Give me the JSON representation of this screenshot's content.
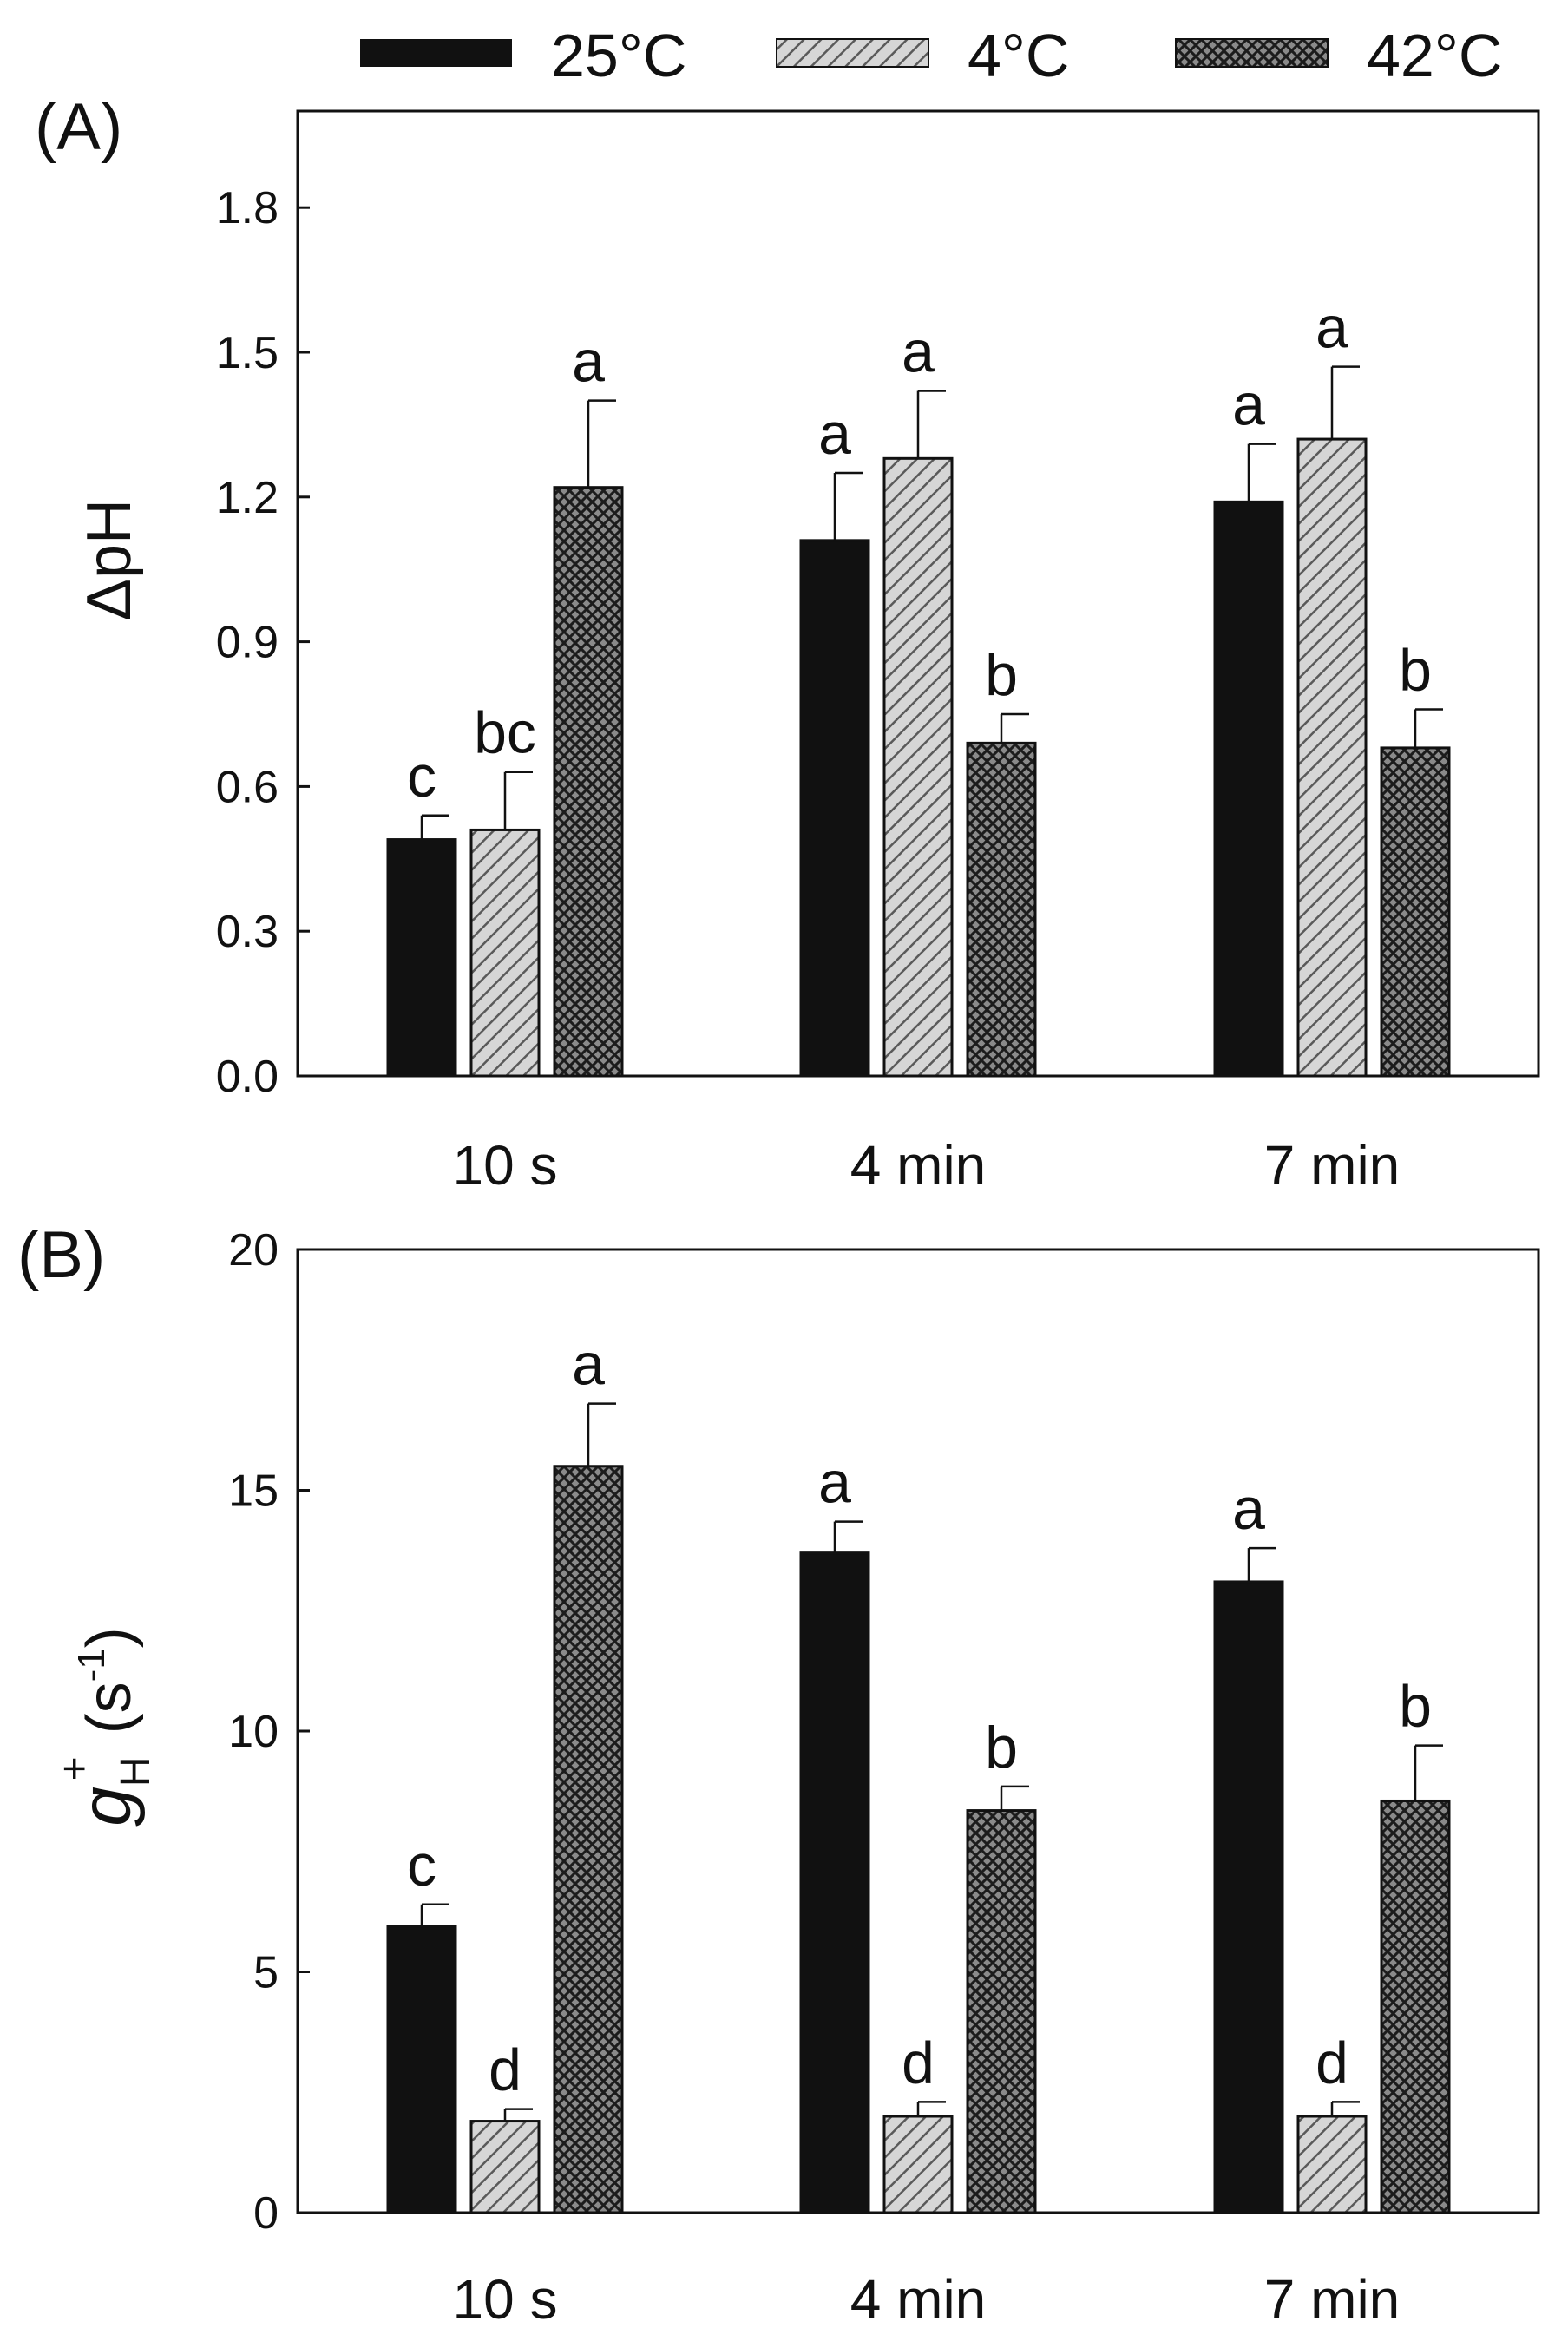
{
  "legend": {
    "entries": [
      {
        "key": "t25",
        "label": "25°C"
      },
      {
        "key": "t4",
        "label": "4°C"
      },
      {
        "key": "t42",
        "label": "42°C"
      }
    ]
  },
  "colors": {
    "t25": "#111111",
    "t4_fill": "#d6d6d6",
    "t4_hatch": "#5a5a5a",
    "t42_fill": "#8a8a8a",
    "t42_hatch": "#1c1c1c",
    "axis": "#111111"
  },
  "chart_data": [
    {
      "type": "bar",
      "panel_label": "(A)",
      "ylabel": "ΔpH",
      "categories": [
        "10 s",
        "4 min",
        "7 min"
      ],
      "ylim": [
        0,
        2.0
      ],
      "yticks": [
        "0.0",
        "0.3",
        "0.6",
        "0.9",
        "1.2",
        "1.5",
        "1.8"
      ],
      "ytick_values": [
        0,
        0.3,
        0.6,
        0.9,
        1.2,
        1.5,
        1.8
      ],
      "series": [
        {
          "key": "t25",
          "name": "25°C",
          "values": [
            0.49,
            1.11,
            1.19
          ],
          "errors": [
            0.05,
            0.14,
            0.12
          ],
          "letters": [
            "c",
            "a",
            "a"
          ]
        },
        {
          "key": "t4",
          "name": "4°C",
          "values": [
            0.51,
            1.28,
            1.32
          ],
          "errors": [
            0.12,
            0.14,
            0.15
          ],
          "letters": [
            "bc",
            "a",
            "a"
          ]
        },
        {
          "key": "t42",
          "name": "42°C",
          "values": [
            1.22,
            0.69,
            0.68
          ],
          "errors": [
            0.18,
            0.06,
            0.08
          ],
          "letters": [
            "a",
            "b",
            "b"
          ]
        }
      ]
    },
    {
      "type": "bar",
      "panel_label": "(B)",
      "ylabel_main": "g",
      "ylabel_sub": "H",
      "ylabel_sup": "+",
      "ylabel_unit": "(s",
      "ylabel_unit_sup": "-1",
      "ylabel_unit_close": ")",
      "categories": [
        "10 s",
        "4 min",
        "7 min"
      ],
      "ylim": [
        0,
        20
      ],
      "yticks": [
        "0",
        "5",
        "10",
        "15",
        "20"
      ],
      "ytick_values": [
        0,
        5,
        10,
        15,
        20
      ],
      "series": [
        {
          "key": "t25",
          "name": "25°C",
          "values": [
            5.95,
            13.7,
            13.1
          ],
          "errors": [
            0.45,
            0.65,
            0.7
          ],
          "letters": [
            "c",
            "a",
            "a"
          ]
        },
        {
          "key": "t4",
          "name": "4°C",
          "values": [
            1.9,
            2.0,
            2.0
          ],
          "errors": [
            0.25,
            0.3,
            0.3
          ],
          "letters": [
            "d",
            "d",
            "d"
          ]
        },
        {
          "key": "t42",
          "name": "42°C",
          "values": [
            15.5,
            8.35,
            8.55
          ],
          "errors": [
            1.3,
            0.5,
            1.15
          ],
          "letters": [
            "a",
            "b",
            "b"
          ]
        }
      ]
    }
  ]
}
